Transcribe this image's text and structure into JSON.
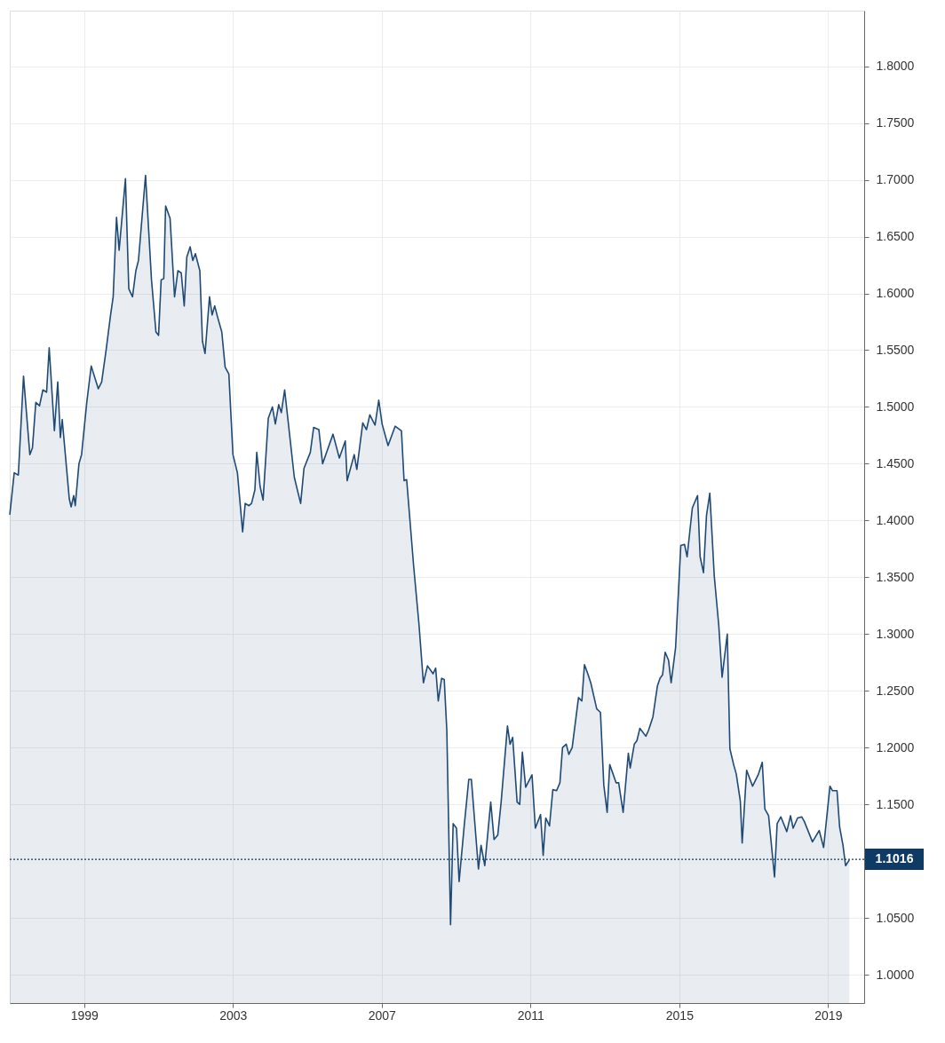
{
  "chart_data": {
    "type": "area",
    "x": [
      1997.0,
      1997.12,
      1997.23,
      1997.37,
      1997.54,
      1997.61,
      1997.7,
      1997.8,
      1997.89,
      1997.99,
      1998.06,
      1998.2,
      1998.29,
      1998.36,
      1998.41,
      1998.6,
      1998.65,
      1998.72,
      1998.76,
      1998.86,
      1998.93,
      1999.07,
      1999.19,
      1999.38,
      1999.47,
      1999.59,
      1999.71,
      1999.78,
      1999.87,
      1999.94,
      2000.11,
      2000.2,
      2000.3,
      2000.39,
      2000.46,
      2000.65,
      2000.81,
      2000.93,
      2001.0,
      2001.07,
      2001.14,
      2001.19,
      2001.31,
      2001.43,
      2001.52,
      2001.61,
      2001.69,
      2001.76,
      2001.85,
      2001.92,
      2001.99,
      2002.11,
      2002.18,
      2002.25,
      2002.37,
      2002.44,
      2002.51,
      2002.58,
      2002.7,
      2002.79,
      2002.89,
      2003.0,
      2003.12,
      2003.26,
      2003.33,
      2003.43,
      2003.5,
      2003.59,
      2003.64,
      2003.73,
      2003.81,
      2003.95,
      2004.06,
      2004.14,
      2004.23,
      2004.3,
      2004.39,
      2004.65,
      2004.82,
      2004.91,
      2005.08,
      2005.17,
      2005.31,
      2005.41,
      2005.69,
      2005.86,
      2006.02,
      2006.07,
      2006.26,
      2006.33,
      2006.49,
      2006.59,
      2006.68,
      2006.82,
      2006.92,
      2007.01,
      2007.17,
      2007.36,
      2007.53,
      2007.6,
      2007.67,
      2007.86,
      2008.0,
      2008.12,
      2008.23,
      2008.38,
      2008.45,
      2008.52,
      2008.61,
      2008.68,
      2008.75,
      2008.85,
      2008.92,
      2009.01,
      2009.08,
      2009.22,
      2009.34,
      2009.41,
      2009.6,
      2009.67,
      2009.77,
      2009.93,
      2010.02,
      2010.12,
      2010.21,
      2010.38,
      2010.45,
      2010.52,
      2010.64,
      2010.71,
      2010.78,
      2010.87,
      2011.04,
      2011.13,
      2011.27,
      2011.34,
      2011.41,
      2011.51,
      2011.6,
      2011.7,
      2011.79,
      2011.86,
      2011.96,
      2012.03,
      2012.12,
      2012.29,
      2012.38,
      2012.45,
      2012.55,
      2012.62,
      2012.78,
      2012.88,
      2012.97,
      2013.06,
      2013.13,
      2013.3,
      2013.37,
      2013.49,
      2013.63,
      2013.68,
      2013.79,
      2013.86,
      2013.94,
      2014.1,
      2014.17,
      2014.29,
      2014.41,
      2014.48,
      2014.55,
      2014.62,
      2014.71,
      2014.78,
      2014.9,
      2015.04,
      2015.14,
      2015.21,
      2015.35,
      2015.49,
      2015.56,
      2015.65,
      2015.73,
      2015.82,
      2015.94,
      2016.06,
      2016.15,
      2016.29,
      2016.36,
      2016.46,
      2016.53,
      2016.64,
      2016.69,
      2016.81,
      2016.97,
      2017.12,
      2017.23,
      2017.3,
      2017.4,
      2017.56,
      2017.63,
      2017.73,
      2017.89,
      2017.99,
      2018.06,
      2018.18,
      2018.29,
      2018.36,
      2018.58,
      2018.76,
      2018.88,
      2019.05,
      2019.12,
      2019.24,
      2019.31,
      2019.4,
      2019.47,
      2019.57
    ],
    "series": [
      {
        "color": "#1f4a75",
        "values": [
          1.405,
          1.442,
          1.44,
          1.527,
          1.458,
          1.464,
          1.504,
          1.501,
          1.515,
          1.513,
          1.552,
          1.479,
          1.522,
          1.473,
          1.489,
          1.419,
          1.412,
          1.422,
          1.413,
          1.45,
          1.458,
          1.504,
          1.536,
          1.516,
          1.522,
          1.55,
          1.581,
          1.597,
          1.667,
          1.638,
          1.701,
          1.604,
          1.597,
          1.62,
          1.629,
          1.704,
          1.612,
          1.566,
          1.563,
          1.612,
          1.613,
          1.677,
          1.666,
          1.597,
          1.62,
          1.618,
          1.589,
          1.632,
          1.641,
          1.629,
          1.635,
          1.62,
          1.558,
          1.547,
          1.597,
          1.581,
          1.589,
          1.58,
          1.566,
          1.535,
          1.529,
          1.458,
          1.442,
          1.39,
          1.415,
          1.413,
          1.415,
          1.427,
          1.46,
          1.43,
          1.418,
          1.49,
          1.5,
          1.485,
          1.502,
          1.495,
          1.515,
          1.438,
          1.415,
          1.446,
          1.46,
          1.482,
          1.48,
          1.45,
          1.476,
          1.455,
          1.47,
          1.435,
          1.458,
          1.445,
          1.486,
          1.48,
          1.493,
          1.484,
          1.506,
          1.485,
          1.466,
          1.483,
          1.479,
          1.435,
          1.436,
          1.359,
          1.309,
          1.257,
          1.272,
          1.265,
          1.27,
          1.241,
          1.261,
          1.26,
          1.215,
          1.044,
          1.133,
          1.129,
          1.082,
          1.132,
          1.172,
          1.172,
          1.093,
          1.114,
          1.096,
          1.152,
          1.119,
          1.123,
          1.152,
          1.219,
          1.203,
          1.209,
          1.152,
          1.15,
          1.196,
          1.165,
          1.176,
          1.129,
          1.141,
          1.105,
          1.138,
          1.131,
          1.163,
          1.162,
          1.169,
          1.2,
          1.203,
          1.194,
          1.2,
          1.244,
          1.241,
          1.273,
          1.264,
          1.257,
          1.234,
          1.231,
          1.167,
          1.143,
          1.185,
          1.169,
          1.169,
          1.143,
          1.195,
          1.182,
          1.203,
          1.206,
          1.217,
          1.21,
          1.215,
          1.227,
          1.254,
          1.261,
          1.264,
          1.284,
          1.277,
          1.257,
          1.288,
          1.378,
          1.379,
          1.368,
          1.411,
          1.422,
          1.368,
          1.354,
          1.404,
          1.424,
          1.351,
          1.308,
          1.262,
          1.3,
          1.199,
          1.185,
          1.177,
          1.153,
          1.116,
          1.18,
          1.166,
          1.176,
          1.187,
          1.146,
          1.14,
          1.086,
          1.133,
          1.139,
          1.126,
          1.14,
          1.129,
          1.138,
          1.139,
          1.135,
          1.117,
          1.127,
          1.112,
          1.166,
          1.162,
          1.162,
          1.13,
          1.114,
          1.096,
          1.101
        ]
      }
    ],
    "xlim": [
      1997.0,
      2019.97
    ],
    "xticks": [
      1999,
      2003,
      2007,
      2011,
      2015,
      2019
    ],
    "ylim": [
      0.975,
      1.849
    ],
    "yticks": [
      {
        "value": 1.0,
        "label": "1.0000"
      },
      {
        "value": 1.05,
        "label": "1.0500"
      },
      {
        "value": 1.15,
        "label": "1.1500"
      },
      {
        "value": 1.2,
        "label": "1.2000"
      },
      {
        "value": 1.25,
        "label": "1.2500"
      },
      {
        "value": 1.3,
        "label": "1.3000"
      },
      {
        "value": 1.35,
        "label": "1.3500"
      },
      {
        "value": 1.4,
        "label": "1.4000"
      },
      {
        "value": 1.45,
        "label": "1.4500"
      },
      {
        "value": 1.5,
        "label": "1.5000"
      },
      {
        "value": 1.55,
        "label": "1.5500"
      },
      {
        "value": 1.6,
        "label": "1.6000"
      },
      {
        "value": 1.65,
        "label": "1.6500"
      },
      {
        "value": 1.7,
        "label": "1.7000"
      },
      {
        "value": 1.75,
        "label": "1.7500"
      },
      {
        "value": 1.8,
        "label": "1.8000"
      }
    ],
    "ref_lines": [
      {
        "axis": "y",
        "value": 1.1016,
        "label": "1.1016",
        "color": "#0e3a63",
        "line_style": "dotted"
      }
    ],
    "grid": true
  }
}
